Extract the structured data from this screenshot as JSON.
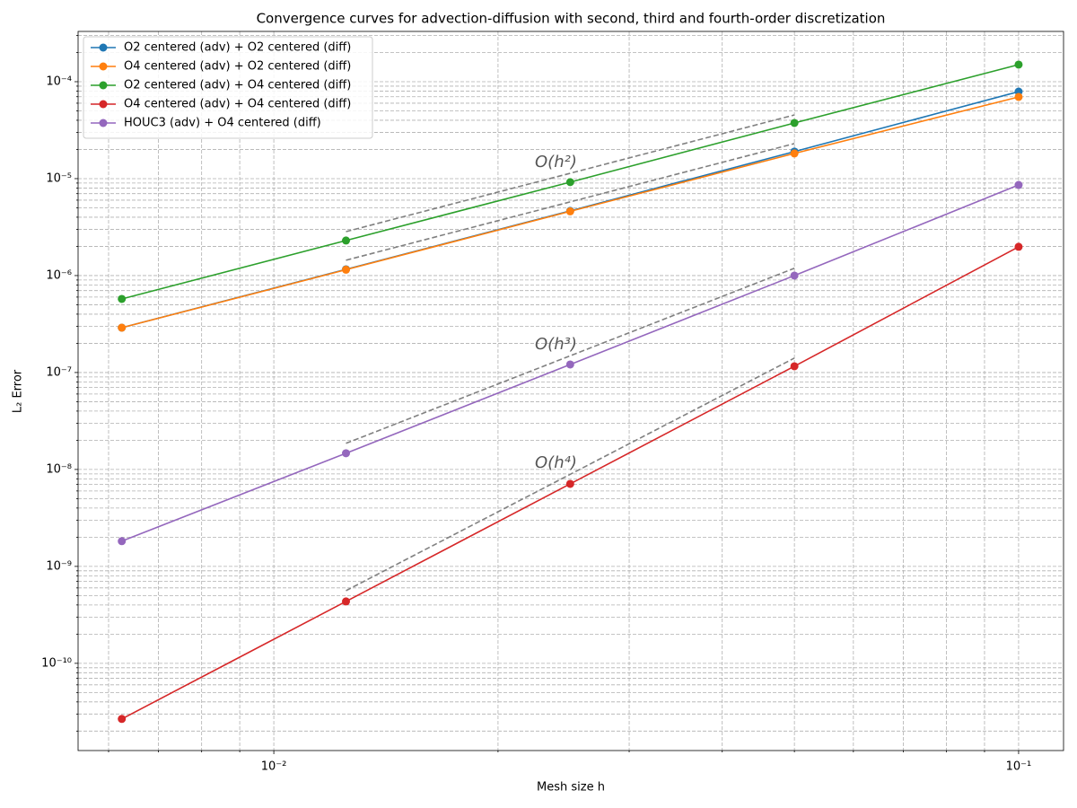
{
  "chart_data": {
    "type": "line",
    "title": "Convergence curves for advection-diffusion with second, third and fourth-order discretization",
    "xlabel": "Mesh size h",
    "ylabel": "L₂ Error",
    "x": [
      0.1,
      0.05,
      0.025,
      0.0125,
      0.00625
    ],
    "series": [
      {
        "name": "O2 centered (adv) + O2 centered (diff)",
        "color": "#1f77b4",
        "values": [
          7.9e-05,
          1.9e-05,
          4.65e-06,
          1.16e-06,
          2.9e-07
        ]
      },
      {
        "name": "O4 centered (adv) + O2 centered (diff)",
        "color": "#ff7f0e",
        "values": [
          6.96e-05,
          1.82e-05,
          4.6e-06,
          1.15e-06,
          2.9e-07
        ]
      },
      {
        "name": "O2 centered (adv) + O4 centered (diff)",
        "color": "#2ca02c",
        "values": [
          0.00015,
          3.75e-05,
          9.2e-06,
          2.3e-06,
          5.74e-07
        ]
      },
      {
        "name": "O4 centered (adv) + O4 centered (diff)",
        "color": "#d62728",
        "values": [
          1.98e-06,
          1.16e-07,
          7.1e-09,
          4.35e-10,
          2.67e-11
        ]
      },
      {
        "name": "HOUC3 (adv) + O4 centered (diff)",
        "color": "#9467bd",
        "values": [
          8.6e-06,
          1e-06,
          1.21e-07,
          1.47e-08,
          1.82e-09
        ]
      }
    ],
    "reference_color": "#808080",
    "reference_lines": [
      {
        "x": [
          0.0125,
          0.05
        ],
        "values": [
          2.84e-06,
          4.54e-05
        ]
      },
      {
        "x": [
          0.0125,
          0.05
        ],
        "values": [
          1.44e-06,
          2.3e-05
        ]
      },
      {
        "x": [
          0.0125,
          0.05
        ],
        "values": [
          1.86e-08,
          1.19e-06
        ]
      },
      {
        "x": [
          0.0125,
          0.05
        ],
        "values": [
          5.62e-10,
          1.41e-07
        ]
      }
    ],
    "annotations": [
      "O(h²)",
      "O(h³)",
      "O(h⁴)"
    ],
    "xscale": "log",
    "yscale": "log",
    "grid": true,
    "legend_position": "upper left",
    "xlim": [
      0.00546,
      0.1149
    ],
    "ylim": [
      1.26e-11,
      0.00033
    ],
    "xticks": [
      {
        "value": 0.01,
        "label": "10⁻²"
      },
      {
        "value": 0.1,
        "label": "10⁻¹"
      }
    ],
    "xminor_ticks": [
      0.006,
      0.007,
      0.008,
      0.009,
      0.02,
      0.03,
      0.04,
      0.05,
      0.06,
      0.07,
      0.08,
      0.09
    ],
    "yticks": [
      {
        "value": 1e-10,
        "label": "10⁻¹⁰"
      },
      {
        "value": 1e-09,
        "label": "10⁻⁹"
      },
      {
        "value": 1e-08,
        "label": "10⁻⁸"
      },
      {
        "value": 1e-07,
        "label": "10⁻⁷"
      },
      {
        "value": 1e-06,
        "label": "10⁻⁶"
      },
      {
        "value": 1e-05,
        "label": "10⁻⁵"
      },
      {
        "value": 0.0001,
        "label": "10⁻⁴"
      }
    ],
    "yminor_ticks": [
      2e-11,
      3e-11,
      4e-11,
      5e-11,
      6e-11,
      7e-11,
      8e-11,
      9e-11,
      2e-10,
      3e-10,
      4e-10,
      5e-10,
      6e-10,
      7e-10,
      8e-10,
      9e-10,
      2e-09,
      3e-09,
      4e-09,
      5e-09,
      6e-09,
      7e-09,
      8e-09,
      9e-09,
      2e-08,
      3e-08,
      4e-08,
      5e-08,
      6e-08,
      7e-08,
      8e-08,
      9e-08,
      2e-07,
      3e-07,
      4e-07,
      5e-07,
      6e-07,
      7e-07,
      8e-07,
      9e-07,
      2e-06,
      3e-06,
      4e-06,
      5e-06,
      6e-06,
      7e-06,
      8e-06,
      9e-06,
      2e-05,
      3e-05,
      4e-05,
      5e-05,
      6e-05,
      7e-05,
      8e-05,
      9e-05,
      0.0002,
      0.0003
    ]
  }
}
